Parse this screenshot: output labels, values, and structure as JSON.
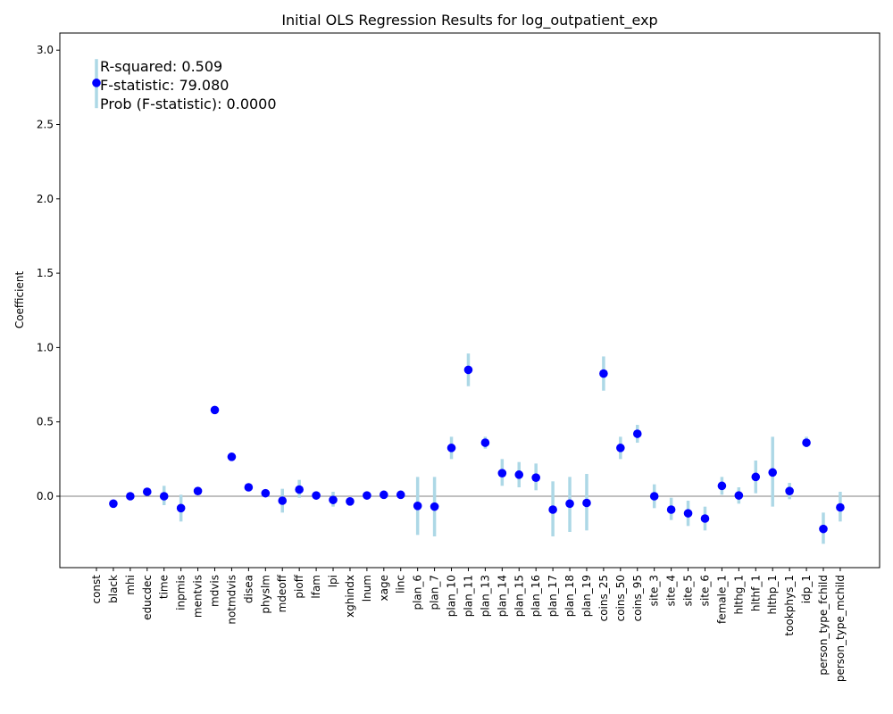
{
  "chart_data": {
    "type": "scatter",
    "title": "Initial OLS Regression Results for log_outpatient_exp",
    "xlabel": "",
    "ylabel": "Coefficient",
    "ylim": [
      -0.48,
      3.1
    ],
    "yticks": [
      "0.0",
      "0.5",
      "1.0",
      "1.5",
      "2.0",
      "2.5",
      "3.0"
    ],
    "zero_line": true,
    "annotations": [
      "R-squared: 0.509",
      "F-statistic: 79.080",
      "Prob (F-statistic): 0.0000"
    ],
    "colors": {
      "point": "#0000ff",
      "errorbar": "#add8e6",
      "zero_line": "#808080"
    },
    "series": [
      {
        "categories": [
          "const",
          "black",
          "mhi",
          "educdec",
          "time",
          "inpmis",
          "mentvis",
          "mdvis",
          "notmdvis",
          "disea",
          "physlm",
          "mdeoff",
          "pioff",
          "lfam",
          "lpi",
          "xghindx",
          "lnum",
          "xage",
          "linc",
          "plan_6",
          "plan_7",
          "plan_10",
          "plan_11",
          "plan_13",
          "plan_14",
          "plan_15",
          "plan_16",
          "plan_17",
          "plan_18",
          "plan_19",
          "coins_25",
          "coins_50",
          "coins_95",
          "site_3",
          "site_4",
          "site_5",
          "site_6",
          "female_1",
          "hlthg_1",
          "hlthf_1",
          "hlthp_1",
          "tookphys_1",
          "idp_1",
          "person_type_fchild",
          "person_type_mchild"
        ],
        "values": [
          2.78,
          -0.05,
          0.0,
          0.03,
          0.0,
          -0.08,
          0.035,
          0.58,
          0.265,
          0.06,
          0.02,
          -0.03,
          0.045,
          0.005,
          -0.025,
          -0.035,
          0.005,
          0.01,
          0.01,
          -0.065,
          -0.07,
          0.325,
          0.85,
          0.36,
          0.155,
          0.145,
          0.125,
          -0.09,
          -0.05,
          -0.045,
          0.825,
          0.325,
          0.42,
          0.0,
          -0.09,
          -0.115,
          -0.15,
          0.07,
          0.005,
          0.13,
          0.16,
          0.035,
          0.36,
          -0.22,
          -0.075
        ],
        "ci_low": [
          2.61,
          -0.06,
          -0.01,
          0.01,
          -0.06,
          -0.17,
          0.02,
          0.57,
          0.25,
          0.05,
          0.01,
          -0.11,
          -0.01,
          -0.01,
          -0.07,
          -0.05,
          -0.01,
          0.0,
          0.0,
          -0.26,
          -0.27,
          0.25,
          0.74,
          0.32,
          0.07,
          0.06,
          0.04,
          -0.27,
          -0.24,
          -0.23,
          0.71,
          0.25,
          0.36,
          -0.08,
          -0.16,
          -0.2,
          -0.23,
          0.01,
          -0.05,
          0.02,
          -0.07,
          -0.02,
          0.33,
          -0.32,
          -0.17
        ],
        "ci_high": [
          2.94,
          -0.04,
          0.01,
          0.05,
          0.07,
          0.01,
          0.05,
          0.59,
          0.28,
          0.07,
          0.03,
          0.05,
          0.11,
          0.02,
          0.03,
          -0.02,
          0.02,
          0.02,
          0.02,
          0.13,
          0.13,
          0.4,
          0.96,
          0.4,
          0.25,
          0.23,
          0.22,
          0.1,
          0.13,
          0.15,
          0.94,
          0.4,
          0.48,
          0.08,
          -0.01,
          -0.03,
          -0.07,
          0.13,
          0.06,
          0.24,
          0.4,
          0.09,
          0.4,
          -0.11,
          0.03
        ]
      }
    ]
  }
}
